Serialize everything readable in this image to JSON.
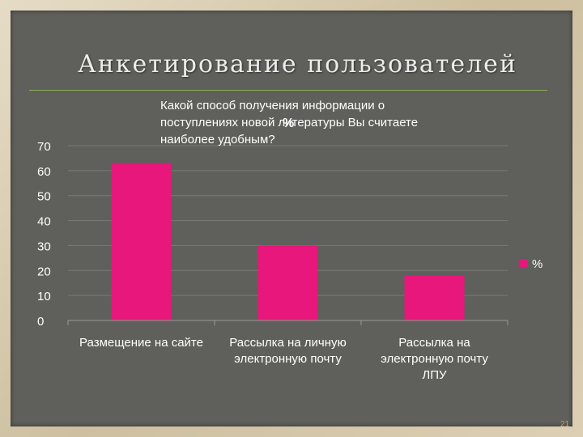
{
  "slide": {
    "title": "Анкетирование пользователей",
    "question": "Какой способ получения информации о поступлениях новой литературы Вы считаете наиболее удобным?",
    "page_number": "21"
  },
  "colors": {
    "bar": "#e8177b",
    "gridline": "#7a7a76",
    "text": "#ffffff"
  },
  "chart_data": {
    "type": "bar",
    "title": "%",
    "xlabel": "",
    "ylabel": "",
    "ylim": [
      0,
      70
    ],
    "yticks": [
      0,
      10,
      20,
      30,
      40,
      50,
      60,
      70
    ],
    "categories": [
      [
        "Размещение на сайте"
      ],
      [
        "Рассылка на личную",
        "электронную почту"
      ],
      [
        "Рассылка на",
        "электронную почту",
        "ЛПУ"
      ]
    ],
    "series": [
      {
        "name": "%",
        "values": [
          63,
          30,
          18
        ]
      }
    ],
    "grid": true,
    "legend_position": "right"
  }
}
